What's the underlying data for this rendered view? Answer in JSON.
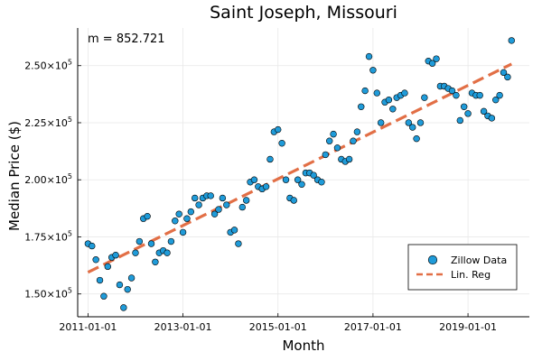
{
  "chart_data": {
    "type": "scatter",
    "title": "Saint Joseph, Missouri",
    "xlabel": "Month",
    "ylabel": "Median Price ($)",
    "annotation": "m = 852.721",
    "x_ticks": [
      {
        "label": "2011-01-01",
        "month": 0
      },
      {
        "label": "2013-01-01",
        "month": 24
      },
      {
        "label": "2015-01-01",
        "month": 48
      },
      {
        "label": "2017-01-01",
        "month": 72
      },
      {
        "label": "2019-01-01",
        "month": 96
      }
    ],
    "y_ticks": [
      {
        "label": "1.50×10",
        "exp": "5",
        "value": 150000
      },
      {
        "label": "1.75×10",
        "exp": "5",
        "value": 175000
      },
      {
        "label": "2.00×10",
        "exp": "5",
        "value": 200000
      },
      {
        "label": "2.25×10",
        "exp": "5",
        "value": 225000
      },
      {
        "label": "2.50×10",
        "exp": "5",
        "value": 250000
      }
    ],
    "xlim": [
      -2.6,
      111.5
    ],
    "ylim": [
      140000,
      266500
    ],
    "x_axis_unit": "months since 2011-01-01",
    "series": [
      {
        "name": "Zillow Data",
        "kind": "scatter",
        "color": "#1f9bd9",
        "x": [
          0,
          1,
          2,
          3,
          4,
          5,
          6,
          7,
          8,
          9,
          10,
          11,
          12,
          13,
          14,
          15,
          16,
          17,
          18,
          19,
          20,
          21,
          22,
          23,
          24,
          25,
          26,
          27,
          28,
          29,
          30,
          31,
          32,
          33,
          34,
          35,
          36,
          37,
          38,
          39,
          40,
          41,
          42,
          43,
          44,
          45,
          46,
          47,
          48,
          49,
          50,
          51,
          52,
          53,
          54,
          55,
          56,
          57,
          58,
          59,
          60,
          61,
          62,
          63,
          64,
          65,
          66,
          67,
          68,
          69,
          70,
          71,
          72,
          73,
          74,
          75,
          76,
          77,
          78,
          79,
          80,
          81,
          82,
          83,
          84,
          85,
          86,
          87,
          88,
          89,
          90,
          91,
          92,
          93,
          94,
          95,
          96,
          97,
          98,
          99,
          100,
          101,
          102,
          103,
          104,
          105,
          106,
          107
        ],
        "y": [
          172000,
          171000,
          165000,
          156000,
          149000,
          162000,
          166000,
          167000,
          154000,
          144000,
          152000,
          157000,
          168000,
          173000,
          183000,
          184000,
          172000,
          164000,
          168000,
          169000,
          168000,
          173000,
          182000,
          185000,
          177000,
          183000,
          186000,
          192000,
          189000,
          192000,
          193000,
          193000,
          185000,
          187000,
          192000,
          189000,
          177000,
          178000,
          172000,
          188000,
          191000,
          199000,
          200000,
          197000,
          196000,
          197000,
          209000,
          221000,
          222000,
          216000,
          200000,
          192000,
          191000,
          200000,
          198000,
          203000,
          203000,
          202000,
          200000,
          199000,
          211000,
          217000,
          220000,
          214000,
          209000,
          208000,
          209000,
          217000,
          221000,
          232000,
          239000,
          254000,
          248000,
          238000,
          225000,
          234000,
          235000,
          231000,
          236000,
          237000,
          238000,
          225000,
          223000,
          218000,
          225000,
          236000,
          252000,
          251000,
          253000,
          241000,
          241000,
          240000,
          239000,
          237000,
          226000,
          232000,
          229000,
          238000,
          237000,
          237000,
          230000,
          228000,
          227000,
          235000,
          237000,
          247000,
          245000,
          261000
        ]
      },
      {
        "name": "Lin. Reg",
        "kind": "line",
        "color": "#e26f46",
        "x": [
          0,
          107
        ],
        "y": [
          159500,
          250700
        ]
      }
    ],
    "legend": {
      "placement": "bottom-right",
      "entries": [
        {
          "label": "Zillow Data",
          "marker": "circle"
        },
        {
          "label": "Lin. Reg",
          "marker": "dashed-line"
        }
      ]
    },
    "grid": true
  }
}
